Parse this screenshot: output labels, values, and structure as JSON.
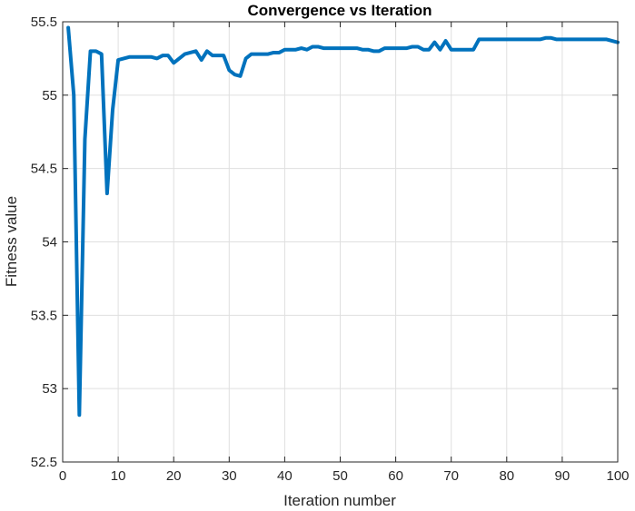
{
  "chart_data": {
    "type": "line",
    "title": "Convergence vs Iteration",
    "xlabel": "Iteration number",
    "ylabel": "Fitness value",
    "xlim": [
      0,
      100
    ],
    "ylim": [
      52.5,
      55.5
    ],
    "xticks": [
      0,
      10,
      20,
      30,
      40,
      50,
      60,
      70,
      80,
      90,
      100
    ],
    "yticks": [
      52.5,
      53,
      53.5,
      54,
      54.5,
      55,
      55.5
    ],
    "xtick_labels": [
      "0",
      "10",
      "20",
      "30",
      "40",
      "50",
      "60",
      "70",
      "80",
      "90",
      "100"
    ],
    "ytick_labels": [
      "52.5",
      "53",
      "53.5",
      "54",
      "54.5",
      "55",
      "55.5"
    ],
    "grid": true,
    "line_color": "#0072BD",
    "series": [
      {
        "x": [
          1,
          2,
          3,
          4,
          5,
          6,
          7,
          8,
          9,
          10,
          11,
          12,
          13,
          14,
          15,
          16,
          17,
          18,
          19,
          20,
          21,
          22,
          23,
          24,
          25,
          26,
          27,
          28,
          29,
          30,
          31,
          32,
          33,
          34,
          35,
          36,
          37,
          38,
          39,
          40,
          41,
          42,
          43,
          44,
          45,
          46,
          47,
          48,
          49,
          50,
          51,
          52,
          53,
          54,
          55,
          56,
          57,
          58,
          59,
          60,
          61,
          62,
          63,
          64,
          65,
          66,
          67,
          68,
          69,
          70,
          71,
          72,
          73,
          74,
          75,
          76,
          77,
          78,
          79,
          80,
          81,
          82,
          83,
          84,
          85,
          86,
          87,
          88,
          89,
          90,
          91,
          92,
          93,
          94,
          95,
          96,
          97,
          98,
          99,
          100
        ],
        "values": [
          55.46,
          55.0,
          52.82,
          54.7,
          55.3,
          55.3,
          55.28,
          54.33,
          54.9,
          55.24,
          55.25,
          55.26,
          55.26,
          55.26,
          55.26,
          55.26,
          55.25,
          55.27,
          55.27,
          55.22,
          55.25,
          55.28,
          55.29,
          55.3,
          55.24,
          55.3,
          55.27,
          55.27,
          55.27,
          55.17,
          55.14,
          55.13,
          55.25,
          55.28,
          55.28,
          55.28,
          55.28,
          55.29,
          55.29,
          55.31,
          55.31,
          55.31,
          55.32,
          55.31,
          55.33,
          55.33,
          55.32,
          55.32,
          55.32,
          55.32,
          55.32,
          55.32,
          55.32,
          55.31,
          55.31,
          55.3,
          55.3,
          55.32,
          55.32,
          55.32,
          55.32,
          55.32,
          55.33,
          55.33,
          55.31,
          55.31,
          55.36,
          55.31,
          55.37,
          55.31,
          55.31,
          55.31,
          55.31,
          55.31,
          55.38,
          55.38,
          55.38,
          55.38,
          55.38,
          55.38,
          55.38,
          55.38,
          55.38,
          55.38,
          55.38,
          55.38,
          55.39,
          55.39,
          55.38,
          55.38,
          55.38,
          55.38,
          55.38,
          55.38,
          55.38,
          55.38,
          55.38,
          55.38,
          55.37,
          55.36
        ]
      }
    ]
  }
}
